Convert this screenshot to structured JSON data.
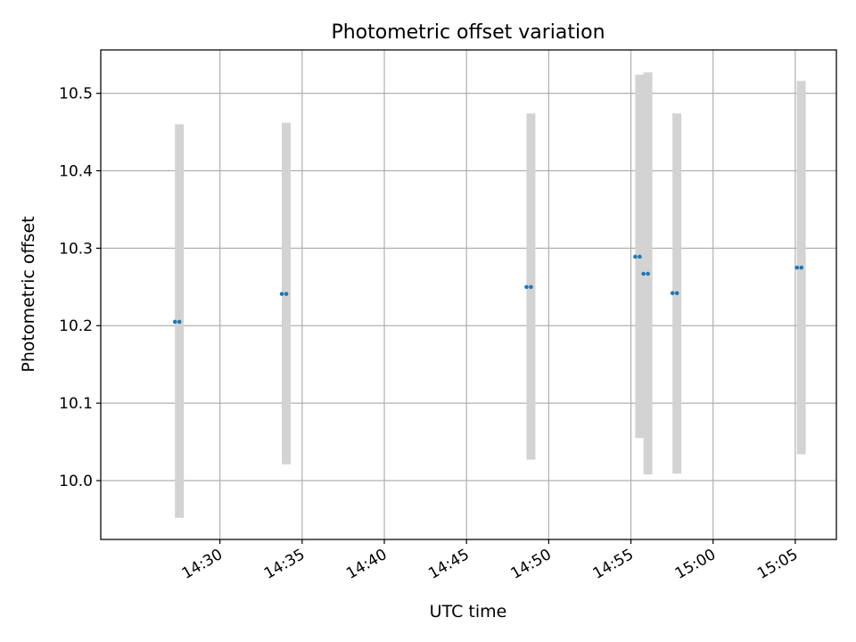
{
  "chart_data": {
    "type": "scatter",
    "title": "Photometric offset variation",
    "xlabel": "UTC time",
    "ylabel": "Photometric offset",
    "xlim": [
      "14:22:45",
      "15:07:30"
    ],
    "ylim": [
      9.924,
      10.556
    ],
    "grid": true,
    "x_ticks": [
      "14:30",
      "14:35",
      "14:40",
      "14:45",
      "14:50",
      "14:55",
      "15:00",
      "15:05"
    ],
    "y_ticks": [
      "10.0",
      "10.1",
      "10.2",
      "10.3",
      "10.4",
      "10.5"
    ],
    "series": [
      {
        "points": [
          {
            "time": "14:27:32",
            "y": 10.205,
            "ymin": 9.952,
            "ymax": 10.46
          },
          {
            "time": "14:34:02",
            "y": 10.241,
            "ymin": 10.021,
            "ymax": 10.462
          },
          {
            "time": "14:48:55",
            "y": 10.25,
            "ymin": 10.027,
            "ymax": 10.474
          },
          {
            "time": "14:55:32",
            "y": 10.289,
            "ymin": 10.055,
            "ymax": 10.524
          },
          {
            "time": "14:56:02",
            "y": 10.267,
            "ymin": 10.008,
            "ymax": 10.527
          },
          {
            "time": "14:57:48",
            "y": 10.242,
            "ymin": 10.009,
            "ymax": 10.474
          },
          {
            "time": "15:05:22",
            "y": 10.275,
            "ymin": 10.034,
            "ymax": 10.516
          }
        ]
      }
    ],
    "colors": {
      "marker": "#1f77b4",
      "errorbar": "#d3d3d3",
      "grid": "#b0b0b0"
    }
  }
}
